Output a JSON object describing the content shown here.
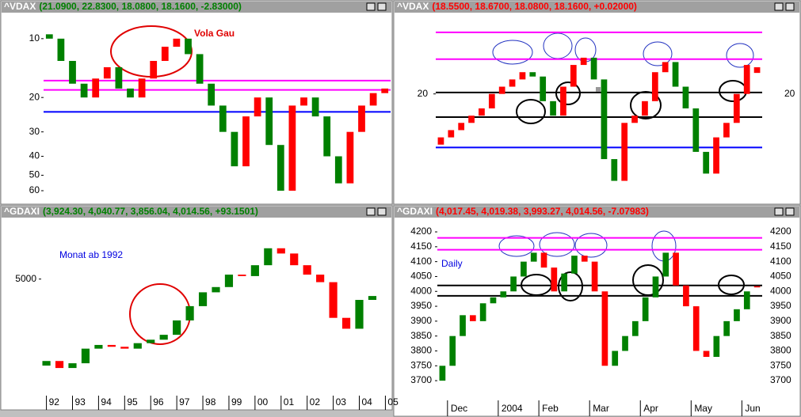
{
  "chart_data": [
    {
      "type": "candlestick",
      "title": "^VDAX",
      "subtitle": "(21.0900, 22.8300, 18.0800, 18.1600, -2.83000)",
      "subtitle_color": "#008000",
      "log": true,
      "inverted": true,
      "ylim": [
        7.5,
        69
      ],
      "yticks": [
        10,
        20,
        30,
        40,
        50,
        60
      ],
      "open": [
        9.5,
        10,
        13,
        17,
        20,
        16,
        14,
        18,
        20,
        16,
        13,
        11,
        10,
        12,
        17,
        22,
        30,
        45,
        25,
        20,
        35,
        60,
        22,
        20,
        25,
        40,
        55,
        30,
        22,
        19
      ],
      "close": [
        10,
        13,
        17,
        20,
        16,
        14,
        18,
        20,
        16,
        13,
        11,
        10,
        12,
        17,
        22,
        30,
        45,
        25,
        20,
        35,
        60,
        22,
        20,
        25,
        40,
        55,
        30,
        22,
        19,
        18
      ],
      "hlines": [
        {
          "value": 16.4,
          "color": "#ff00ff"
        },
        {
          "value": 18.3,
          "color": "#ff00ff"
        },
        {
          "value": 23.7,
          "color": "#0000ff"
        }
      ],
      "annotation": "Vola Gau",
      "annotation_color": "#e00000"
    },
    {
      "type": "candlestick",
      "title": "^VDAX",
      "subtitle": "(18.5500, 18.6700, 18.0800, 18.1600, +0.02000)",
      "subtitle_color": "#ff0000",
      "log": false,
      "inverted": true,
      "ylim": [
        14.5,
        27.5
      ],
      "yticks": [
        20
      ],
      "right_axis": true,
      "open": [
        23.5,
        23,
        22.5,
        22,
        21.5,
        21,
        20,
        19.5,
        19,
        18.5,
        18.8,
        20.5,
        21.5,
        19.5,
        18,
        17.5,
        19,
        24.5,
        26,
        22,
        21.5,
        20.5,
        18.5,
        17.8,
        19.5,
        21,
        24,
        25.5,
        23,
        22,
        20,
        18.55
      ],
      "close": [
        23,
        22.5,
        22,
        21.5,
        21,
        20,
        19.5,
        19,
        18.5,
        18.8,
        20.5,
        21.5,
        19.5,
        18,
        17.5,
        19,
        24.5,
        26,
        22,
        21.5,
        20.5,
        18.5,
        17.8,
        19.5,
        21,
        24,
        25.5,
        23,
        22,
        20,
        18,
        18.16
      ],
      "hlines": [
        {
          "value": 15.75,
          "color": "#ff00ff"
        },
        {
          "value": 17.6,
          "color": "#ff00ff"
        },
        {
          "value": 19.9,
          "color": "#000000"
        },
        {
          "value": 21.6,
          "color": "#000000"
        },
        {
          "value": 23.7,
          "color": "#0000ff"
        }
      ]
    },
    {
      "type": "candlestick",
      "title": "^GDAXI",
      "subtitle": "(3,924.30, 4,040.77, 3,856.04, 4,014.56, +93.1501)",
      "subtitle_color": "#008000",
      "log": true,
      "inverted": false,
      "ylim": [
        1100,
        11000
      ],
      "yticks": [
        5000
      ],
      "x": [
        1992,
        1992.5,
        1993,
        1993.5,
        1994,
        1994.5,
        1995,
        1995.5,
        1996,
        1996.5,
        1997,
        1997.5,
        1998,
        1998.5,
        1999,
        1999.5,
        2000,
        2000.5,
        2001,
        2001.5,
        2002,
        2002.5,
        2003,
        2003.5,
        2004,
        2004.5
      ],
      "xlim": [
        1991.8,
        2005.2
      ],
      "xticks": [
        {
          "value": 1992,
          "label": "92"
        },
        {
          "value": 1993,
          "label": "93"
        },
        {
          "value": 1994,
          "label": "94"
        },
        {
          "value": 1995,
          "label": "95"
        },
        {
          "value": 1996,
          "label": "96"
        },
        {
          "value": 1997,
          "label": "97"
        },
        {
          "value": 1998,
          "label": "98"
        },
        {
          "value": 1999,
          "label": "99"
        },
        {
          "value": 2000,
          "label": "00"
        },
        {
          "value": 2001,
          "label": "01"
        },
        {
          "value": 2002,
          "label": "02"
        },
        {
          "value": 2003,
          "label": "03"
        },
        {
          "value": 2004,
          "label": "04"
        },
        {
          "value": 2005,
          "label": "05"
        }
      ],
      "open": [
        1600,
        1700,
        1550,
        1650,
        2000,
        2100,
        2050,
        2000,
        2150,
        2250,
        2400,
        2900,
        3500,
        4200,
        4500,
        5300,
        5200,
        6000,
        7500,
        7000,
        6000,
        5300,
        4800,
        3000,
        2600,
        3800
      ],
      "close": [
        1700,
        1550,
        1650,
        2000,
        2100,
        2050,
        2000,
        2150,
        2250,
        2400,
        2900,
        3500,
        4200,
        4500,
        5300,
        5200,
        6000,
        7500,
        7000,
        6000,
        5300,
        4800,
        3000,
        2600,
        3800,
        4000
      ],
      "annotation": "Monat ab 1992",
      "annotation_color": "#0000e0"
    },
    {
      "type": "candlestick",
      "title": "^GDAXI",
      "subtitle": "(4,017.45, 4,019.38, 3,993.27, 4,014.56, -7.07983)",
      "subtitle_color": "#ff0000",
      "log": false,
      "inverted": false,
      "ylim": [
        3655,
        4240
      ],
      "right_axis": true,
      "yticks": [
        3700,
        3750,
        3800,
        3850,
        3900,
        3950,
        4000,
        4050,
        4100,
        4150,
        4200
      ],
      "categories": [
        null,
        "Dec",
        null,
        null,
        null,
        null,
        "2004",
        null,
        null,
        null,
        "Feb",
        null,
        null,
        null,
        null,
        "Mar",
        null,
        null,
        null,
        null,
        "Apr",
        null,
        null,
        null,
        null,
        "May",
        null,
        null,
        null,
        null,
        "Jun",
        null
      ],
      "open": [
        3700,
        3750,
        3850,
        3920,
        3900,
        3960,
        3980,
        4000,
        4050,
        4100,
        4130,
        4080,
        4000,
        4060,
        4120,
        4100,
        4000,
        3750,
        3800,
        3850,
        3900,
        3980,
        4050,
        4130,
        4020,
        3950,
        3800,
        3780,
        3850,
        3900,
        3940,
        4017.45
      ],
      "close": [
        3750,
        3850,
        3920,
        3900,
        3960,
        3980,
        4000,
        4050,
        4100,
        4130,
        4080,
        4000,
        4060,
        4120,
        4100,
        4000,
        3750,
        3800,
        3850,
        3900,
        3980,
        4050,
        4130,
        4020,
        3950,
        3800,
        3780,
        3850,
        3900,
        3940,
        4000,
        4014.56
      ],
      "hlines": [
        {
          "value": 4180,
          "color": "#ff00ff"
        },
        {
          "value": 4140,
          "color": "#ff00ff"
        },
        {
          "value": 4020,
          "color": "#000000"
        },
        {
          "value": 3985,
          "color": "#000000"
        }
      ],
      "annotation": "Daily",
      "annotation_color": "#0000e0"
    }
  ]
}
